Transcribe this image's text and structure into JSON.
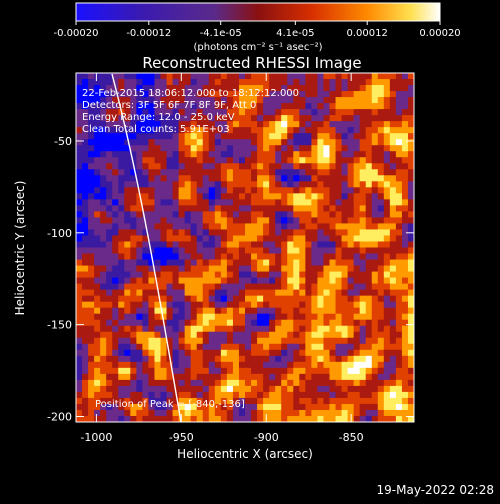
{
  "colorbar": {
    "tick_labels": [
      "-0.00020",
      "-0.00012",
      "-4.1e-05",
      "4.1e-05",
      "0.00012",
      "0.00020"
    ],
    "tick_values": [
      -0.0002,
      -0.00012,
      -4.1e-05,
      4.1e-05,
      0.00012,
      0.0002
    ],
    "range": [
      -0.0002,
      0.0002
    ],
    "units_label": "(photons cm⁻² s⁻¹ asec⁻²)",
    "colors": [
      "#0000ff",
      "#3a1aa0",
      "#6a2a8a",
      "#aa1a10",
      "#e04000",
      "#ff9a00",
      "#ffee60",
      "#ffffff"
    ]
  },
  "title": "Reconstructed RHESSI Image",
  "annotations": {
    "time_range": "22-Feb-2015 18:06:12.000 to 18:12:12.000",
    "detectors": "Detectors: 3F 5F 6F 7F 8F 9F, Att 0",
    "energy_range": "Energy Range: 12.0 - 25.0 keV",
    "clean_counts": "Clean    Total counts: 5.91E+03",
    "peak_position": "Position of Peak = [-840,-136]"
  },
  "axes": {
    "xlabel": "Heliocentric X (arcsec)",
    "ylabel": "Heliocentric Y (arcsec)",
    "x_ticks": [
      {
        "value": -1000,
        "label": "-1000"
      },
      {
        "value": -950,
        "label": "-950"
      },
      {
        "value": -900,
        "label": "-900"
      },
      {
        "value": -850,
        "label": "-850"
      }
    ],
    "y_ticks": [
      {
        "value": -50,
        "label": "-50"
      },
      {
        "value": -100,
        "label": "-100"
      },
      {
        "value": -150,
        "label": "-150"
      },
      {
        "value": -200,
        "label": "-200"
      }
    ],
    "xlim": [
      -1012,
      -813
    ],
    "ylim": [
      -203,
      -13
    ]
  },
  "timestamp": "19-May-2022 02:28"
}
